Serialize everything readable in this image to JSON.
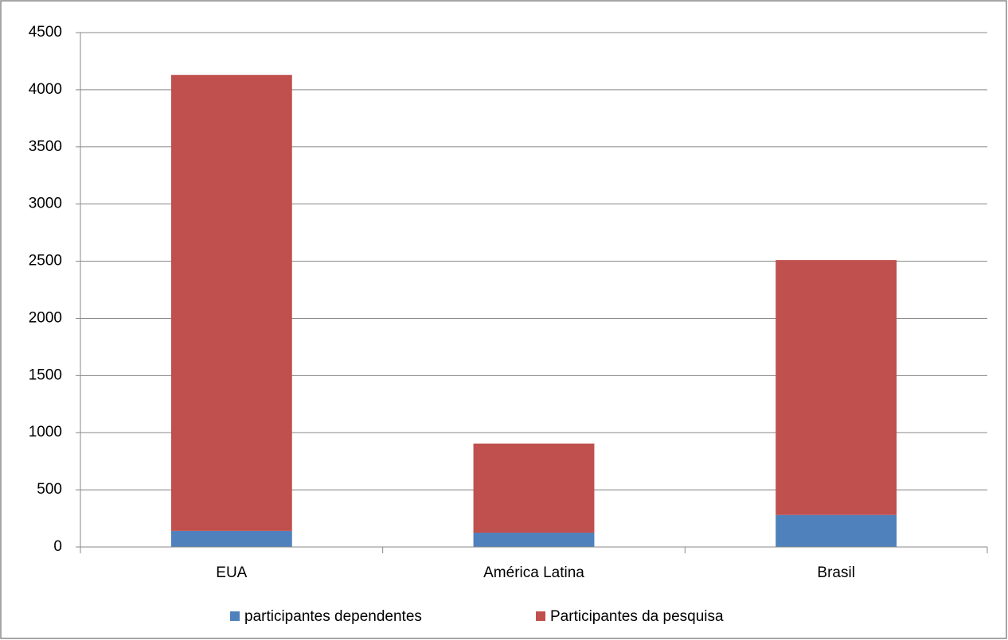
{
  "chart_data": {
    "type": "stacked_bar",
    "categories": [
      "EUA",
      "América Latina",
      "Brasil"
    ],
    "series": [
      {
        "name": "participantes dependentes",
        "color": "#4f81bd",
        "values": [
          140,
          125,
          280
        ]
      },
      {
        "name": "Participantes da pesquisa",
        "color": "#c0504d",
        "values": [
          3990,
          780,
          2230
        ]
      }
    ],
    "ylim": [
      0,
      4500
    ],
    "yticks": [
      0,
      500,
      1000,
      1500,
      2000,
      2500,
      3000,
      3500,
      4000,
      4500
    ],
    "grid": true,
    "legend": "bottom"
  }
}
